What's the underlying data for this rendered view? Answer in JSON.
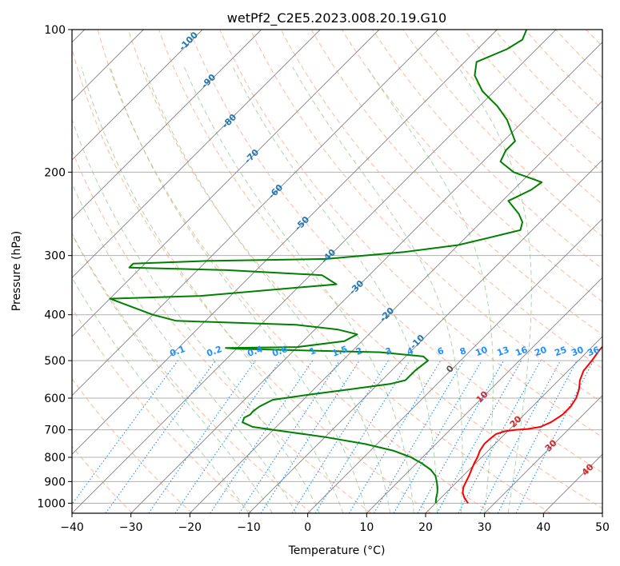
{
  "chart_data": {
    "type": "line",
    "title": "wetPf2_C2E5.2023.008.20.19.G10",
    "xlabel": "Temperature (°C)",
    "ylabel": "Pressure (hPa)",
    "xlim": [
      -40,
      50
    ],
    "ylim": [
      1050,
      100
    ],
    "x_ticks": [
      -40,
      -30,
      -20,
      -10,
      0,
      10,
      20,
      30,
      40,
      50
    ],
    "y_ticks": [
      100,
      200,
      300,
      400,
      500,
      600,
      700,
      800,
      900,
      1000
    ],
    "x_tick_labels": [
      "−40",
      "−30",
      "−20",
      "−10",
      "0",
      "10",
      "20",
      "30",
      "40",
      "50"
    ],
    "y_tick_labels": [
      "100",
      "200",
      "300",
      "400",
      "500",
      "600",
      "700",
      "800",
      "900",
      "1000"
    ],
    "colors": {
      "temperature": "#ff0000",
      "dewpoint": "#008000",
      "isotherm": "#808080",
      "dry_adiabat": "#ffa07a",
      "moist_adiabat": "#90c890",
      "mixing_ratio": "#1e90ff",
      "isotherm_label": "#1f77b4",
      "positive_isotherm_label": "#d62728",
      "zero_label": "#555555"
    },
    "series": [
      {
        "name": "Temperature",
        "color": "#ff0000",
        "points": [
          [
            25.5,
            1000
          ],
          [
            24.0,
            975
          ],
          [
            22.8,
            950
          ],
          [
            22.0,
            925
          ],
          [
            21.5,
            900
          ],
          [
            21.0,
            875
          ],
          [
            20.4,
            850
          ],
          [
            19.8,
            825
          ],
          [
            19.3,
            800
          ],
          [
            18.6,
            775
          ],
          [
            18.2,
            750
          ],
          [
            18.3,
            730
          ],
          [
            18.5,
            715
          ],
          [
            19.5,
            705
          ],
          [
            21.0,
            700
          ],
          [
            23.0,
            697
          ],
          [
            24.8,
            690
          ],
          [
            25.8,
            675
          ],
          [
            26.5,
            650
          ],
          [
            26.5,
            625
          ],
          [
            26.0,
            600
          ],
          [
            25.0,
            575
          ],
          [
            23.6,
            550
          ],
          [
            22.6,
            525
          ],
          [
            22.3,
            500
          ],
          [
            21.8,
            475
          ],
          [
            21.5,
            450
          ],
          [
            20.9,
            425
          ],
          [
            20.0,
            400
          ],
          [
            18.0,
            375
          ],
          [
            15.5,
            350
          ],
          [
            12.5,
            325
          ],
          [
            9.5,
            300
          ],
          [
            7.0,
            275
          ],
          [
            4.5,
            250
          ],
          [
            1.5,
            225
          ],
          [
            -1.0,
            200
          ],
          [
            -3.0,
            180
          ],
          [
            -5.0,
            165
          ],
          [
            -6.5,
            155
          ],
          [
            -8.5,
            145
          ],
          [
            -11.0,
            135
          ],
          [
            -14.0,
            125
          ],
          [
            -17.0,
            117
          ],
          [
            -20.5,
            110
          ],
          [
            -24.5,
            104
          ],
          [
            -27.5,
            100
          ]
        ]
      },
      {
        "name": "Dewpoint",
        "color": "#008000",
        "points": [
          [
            20.0,
            1000
          ],
          [
            19.2,
            975
          ],
          [
            18.5,
            950
          ],
          [
            17.6,
            925
          ],
          [
            16.5,
            900
          ],
          [
            15.3,
            875
          ],
          [
            13.5,
            850
          ],
          [
            11.0,
            825
          ],
          [
            8.0,
            800
          ],
          [
            4.0,
            775
          ],
          [
            -2.0,
            750
          ],
          [
            -10.0,
            725
          ],
          [
            -18.0,
            705
          ],
          [
            -20.0,
            700
          ],
          [
            -24.0,
            690
          ],
          [
            -26.5,
            675
          ],
          [
            -27.0,
            660
          ],
          [
            -26.5,
            650
          ],
          [
            -26.6,
            640
          ],
          [
            -26.3,
            625
          ],
          [
            -25.2,
            605
          ],
          [
            -20.0,
            590
          ],
          [
            -14.0,
            575
          ],
          [
            -8.0,
            560
          ],
          [
            -6.0,
            550
          ],
          [
            -6.0,
            525
          ],
          [
            -5.5,
            500
          ],
          [
            -7.0,
            490
          ],
          [
            -15.0,
            480
          ],
          [
            -40.0,
            472
          ],
          [
            -42.0,
            470
          ],
          [
            -30.0,
            468
          ],
          [
            -23.0,
            455
          ],
          [
            -22.0,
            440
          ],
          [
            -26.0,
            430
          ],
          [
            -34.0,
            420
          ],
          [
            -55.0,
            412
          ],
          [
            -60.0,
            400
          ],
          [
            -70.0,
            370
          ],
          [
            -55.0,
            365
          ],
          [
            -34.0,
            345
          ],
          [
            -38.0,
            330
          ],
          [
            -55.0,
            322
          ],
          [
            -72.0,
            318
          ],
          [
            -72.0,
            312
          ],
          [
            -60.0,
            308
          ],
          [
            -40.0,
            305
          ],
          [
            -28.0,
            295
          ],
          [
            -20.0,
            285
          ],
          [
            -16.0,
            275
          ],
          [
            -12.0,
            265
          ],
          [
            -13.0,
            255
          ],
          [
            -15.0,
            245
          ],
          [
            -19.0,
            230
          ],
          [
            -17.0,
            218
          ],
          [
            -16.5,
            210
          ],
          [
            -23.0,
            200
          ],
          [
            -27.0,
            190
          ],
          [
            -28.0,
            180
          ],
          [
            -28.0,
            172
          ],
          [
            -30.0,
            165
          ],
          [
            -33.0,
            155
          ],
          [
            -37.0,
            145
          ],
          [
            -42.0,
            135
          ],
          [
            -46.0,
            125
          ],
          [
            -48.0,
            117
          ],
          [
            -45.0,
            110
          ],
          [
            -44.0,
            105
          ],
          [
            -45.0,
            100
          ]
        ]
      }
    ],
    "isotherm_labels": [
      "-100",
      "-90",
      "-80",
      "-70",
      "-60",
      "-50",
      "-40",
      "-30",
      "-20",
      "-10",
      "0",
      "10",
      "20",
      "30",
      "40"
    ],
    "mixing_ratio_labels": [
      "0.1",
      "0.2",
      "0.4",
      "0.6",
      "1",
      "1.5",
      "2",
      "3",
      "4",
      "6",
      "8",
      "10",
      "13",
      "16",
      "20",
      "25",
      "30",
      "36"
    ]
  }
}
